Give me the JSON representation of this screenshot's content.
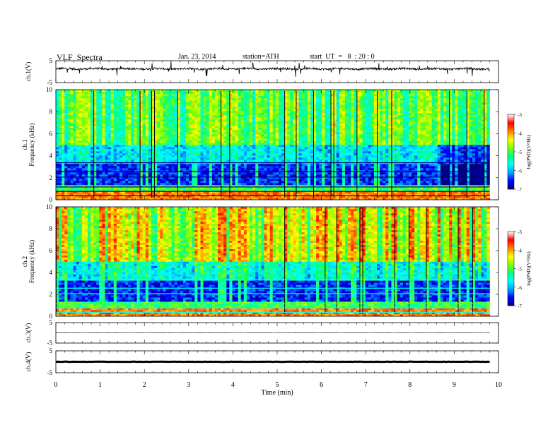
{
  "header": {
    "title": "VLF  Spectra",
    "date": "Jan. 23, 2014",
    "station": "station=ATH",
    "start": "start  UT  =   8  : 20 : 0"
  },
  "chart_data": [
    {
      "type": "line",
      "panel": "ch1-waveform",
      "ylabel": "ch.1(V)",
      "yticks": [
        "5",
        "-5"
      ],
      "ylim": [
        -5,
        5
      ],
      "xlim": [
        0,
        10
      ],
      "data_extent_min": 9.8,
      "baseline_v": 1.3,
      "series": [
        {
          "color": "#000000",
          "note_level": "noisy trace around +1 V with spikes"
        }
      ]
    },
    {
      "type": "heatmap",
      "panel": "ch1-spectrogram",
      "ylabel": "ch.1\nFrequency  (kHz)",
      "ylabel_lines": [
        "ch.1",
        "Frequency  (kHz)"
      ],
      "yticks": [
        "0",
        "2",
        "4",
        "6",
        "8",
        "10"
      ],
      "ylim": [
        0,
        10
      ],
      "xlim": [
        0,
        10
      ],
      "colorbar": {
        "label": "log(PSD)(V²/Hz)",
        "ticks": [
          "-3",
          "-4",
          "-5",
          "-6",
          "-7"
        ],
        "range": [
          -7,
          -3
        ]
      }
    },
    {
      "type": "heatmap",
      "panel": "ch2-spectrogram",
      "ylabel_lines": [
        "ch.2",
        "Frequency  (kHz)"
      ],
      "yticks": [
        "0",
        "2",
        "4",
        "6",
        "8",
        "10"
      ],
      "ylim": [
        0,
        10
      ],
      "xlim": [
        0,
        10
      ],
      "colorbar": {
        "label": "log(PSD)(V²/Hz)",
        "ticks": [
          "-3",
          "-4",
          "-5",
          "-6",
          "-7"
        ],
        "range": [
          -7,
          -3
        ]
      }
    },
    {
      "type": "line",
      "panel": "ch3-waveform",
      "ylabel": "ch.3(V)",
      "yticks": [
        "5",
        "-5"
      ],
      "ylim": [
        -5,
        5
      ],
      "xlim": [
        0,
        10
      ],
      "baseline_v": 0
    },
    {
      "type": "line",
      "panel": "ch4-waveform",
      "ylabel": "ch.4(V)",
      "yticks": [
        "5",
        "-5"
      ],
      "ylim": [
        -5,
        5
      ],
      "xlim": [
        0,
        10
      ],
      "baseline_v": 0
    }
  ],
  "x_axis": {
    "label": "Time  (min)",
    "ticks": [
      "0",
      "1",
      "2",
      "3",
      "4",
      "5",
      "6",
      "7",
      "8",
      "9",
      "10"
    ]
  },
  "colors": {
    "scale": [
      "#000080",
      "#0000ff",
      "#00a0ff",
      "#00ffff",
      "#00ff80",
      "#80ff00",
      "#ffff00",
      "#ff8000",
      "#ff0000",
      "#ffffff"
    ]
  }
}
